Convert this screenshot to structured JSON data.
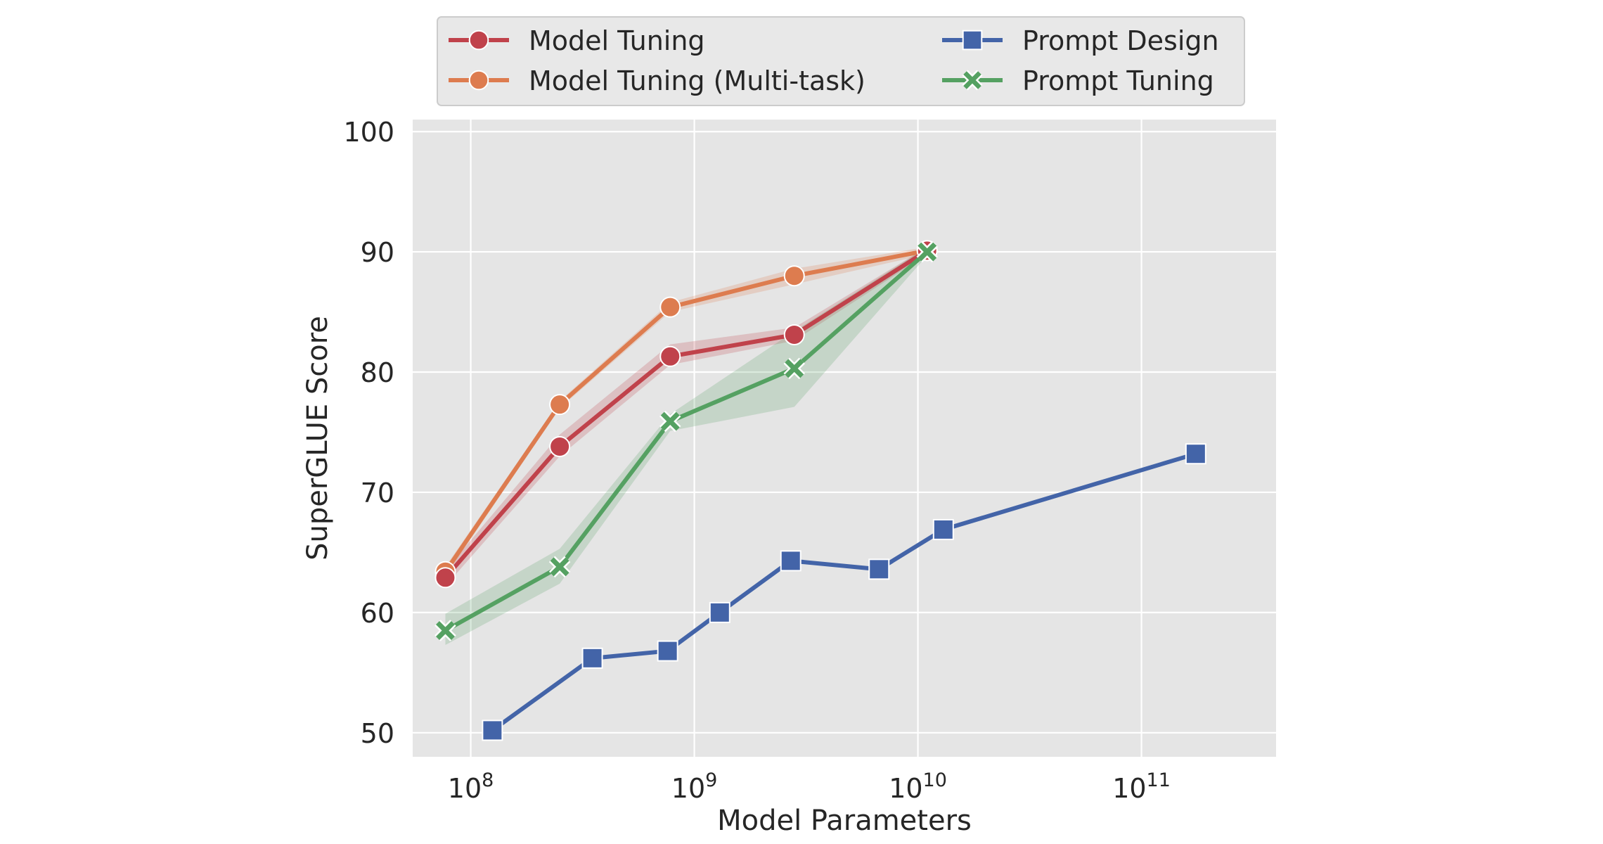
{
  "chart_data": {
    "type": "line",
    "title": "",
    "xlabel": "Model Parameters",
    "ylabel": "SuperGLUE Score",
    "xscale": "log",
    "xlim": [
      55000000,
      400000000000
    ],
    "ylim": [
      48,
      101
    ],
    "x_ticks": [
      {
        "value": 100000000,
        "base": "10",
        "exp": "8"
      },
      {
        "value": 1000000000,
        "base": "10",
        "exp": "9"
      },
      {
        "value": 10000000000,
        "base": "10",
        "exp": "10"
      },
      {
        "value": 100000000000,
        "base": "10",
        "exp": "11"
      }
    ],
    "y_ticks": [
      50,
      60,
      70,
      80,
      90,
      100
    ],
    "grid": true,
    "legend_position": "top-center",
    "series": [
      {
        "name": "Model Tuning",
        "color": "#c0424b",
        "marker": "circle",
        "x": [
          77000000,
          250000000,
          780000000,
          2800000000,
          11000000000
        ],
        "y": [
          62.9,
          73.8,
          81.3,
          83.1,
          90.1
        ],
        "band_low": [
          62.2,
          73.0,
          80.6,
          82.6,
          89.8
        ],
        "band_high": [
          63.5,
          74.8,
          82.3,
          83.7,
          90.4
        ]
      },
      {
        "name": "Model Tuning (Multi-task)",
        "color": "#dd7c4f",
        "marker": "circle",
        "x": [
          77000000,
          250000000,
          780000000,
          2800000000,
          11000000000
        ],
        "y": [
          63.4,
          77.3,
          85.4,
          88.0,
          90.1
        ],
        "band_low": [
          63.0,
          77.0,
          85.0,
          87.3,
          89.8
        ],
        "band_high": [
          63.8,
          77.6,
          85.8,
          88.6,
          90.4
        ]
      },
      {
        "name": "Prompt Design",
        "color": "#4364a8",
        "marker": "square",
        "x": [
          125000000,
          350000000,
          760000000,
          1300000000,
          2700000000,
          6700000000,
          13000000000,
          175000000000
        ],
        "y": [
          50.2,
          56.2,
          56.8,
          60.0,
          64.3,
          63.6,
          66.9,
          73.2
        ]
      },
      {
        "name": "Prompt Tuning",
        "color": "#55a162",
        "marker": "x",
        "x": [
          77000000,
          250000000,
          780000000,
          2800000000,
          11000000000
        ],
        "y": [
          58.5,
          63.8,
          75.9,
          80.3,
          90.0
        ],
        "band_low": [
          57.3,
          62.4,
          75.1,
          77.1,
          89.7
        ],
        "band_high": [
          59.9,
          65.3,
          76.5,
          83.4,
          90.4
        ]
      }
    ]
  }
}
